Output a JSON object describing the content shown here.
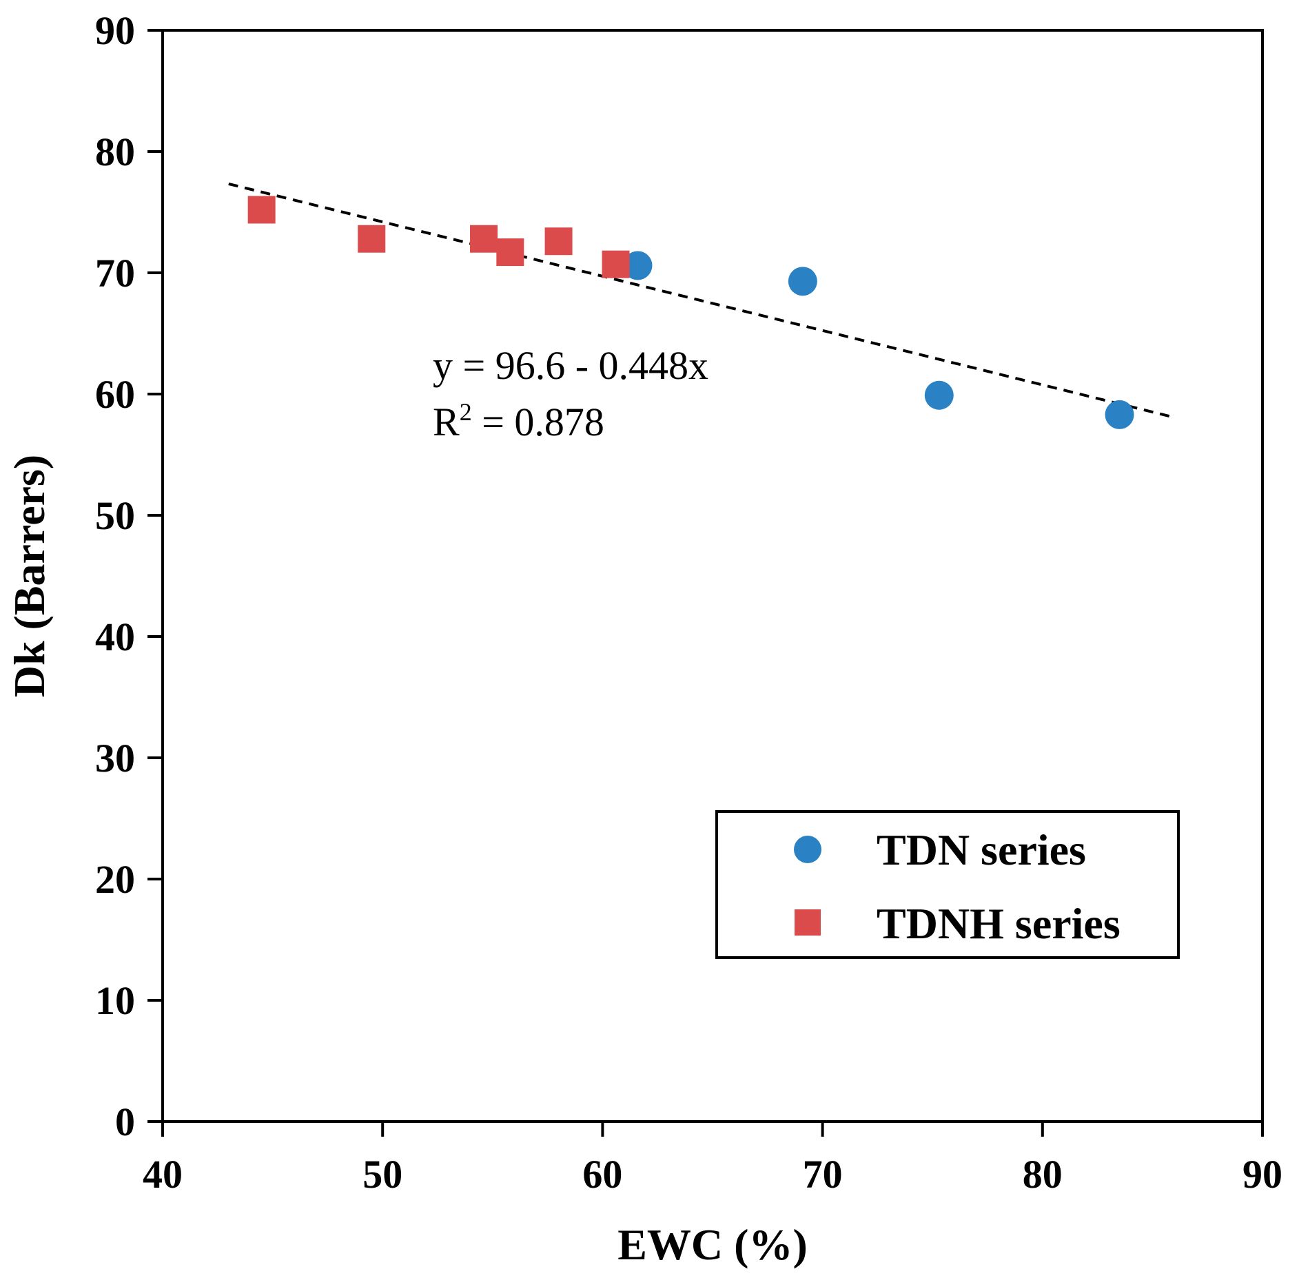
{
  "chart_data": {
    "type": "scatter",
    "title": "",
    "xlabel": "EWC (%)",
    "ylabel": "Dk (Barrers)",
    "xlim": [
      40,
      90
    ],
    "ylim": [
      0,
      90
    ],
    "xticks": [
      "40",
      "50",
      "60",
      "70",
      "80",
      "90"
    ],
    "yticks": [
      "0",
      "10",
      "20",
      "30",
      "40",
      "50",
      "60",
      "70",
      "80",
      "90"
    ],
    "grid": false,
    "legend_position": "bottom-right",
    "series": [
      {
        "name": "TDN series",
        "marker": "circle",
        "color": "#2A82C4",
        "points": [
          {
            "x": 61.6,
            "y": 70.6
          },
          {
            "x": 69.1,
            "y": 69.3
          },
          {
            "x": 75.3,
            "y": 59.9
          },
          {
            "x": 83.5,
            "y": 58.3
          }
        ]
      },
      {
        "name": "TDNH series",
        "marker": "square",
        "color": "#DC4B4B",
        "points": [
          {
            "x": 44.5,
            "y": 75.2
          },
          {
            "x": 49.5,
            "y": 72.8
          },
          {
            "x": 54.6,
            "y": 72.8
          },
          {
            "x": 55.8,
            "y": 71.7
          },
          {
            "x": 58.0,
            "y": 72.6
          },
          {
            "x": 60.6,
            "y": 70.7
          }
        ]
      }
    ],
    "trendline": {
      "style": "dashed",
      "color": "#000000",
      "intercept": 96.6,
      "slope": -0.448,
      "x_range": [
        43,
        86
      ]
    },
    "annotations": {
      "equation": "y = 96.6 - 0.448x",
      "r2_prefix": "R",
      "r2_superscript": "2",
      "r2_value": " = 0.878"
    }
  }
}
